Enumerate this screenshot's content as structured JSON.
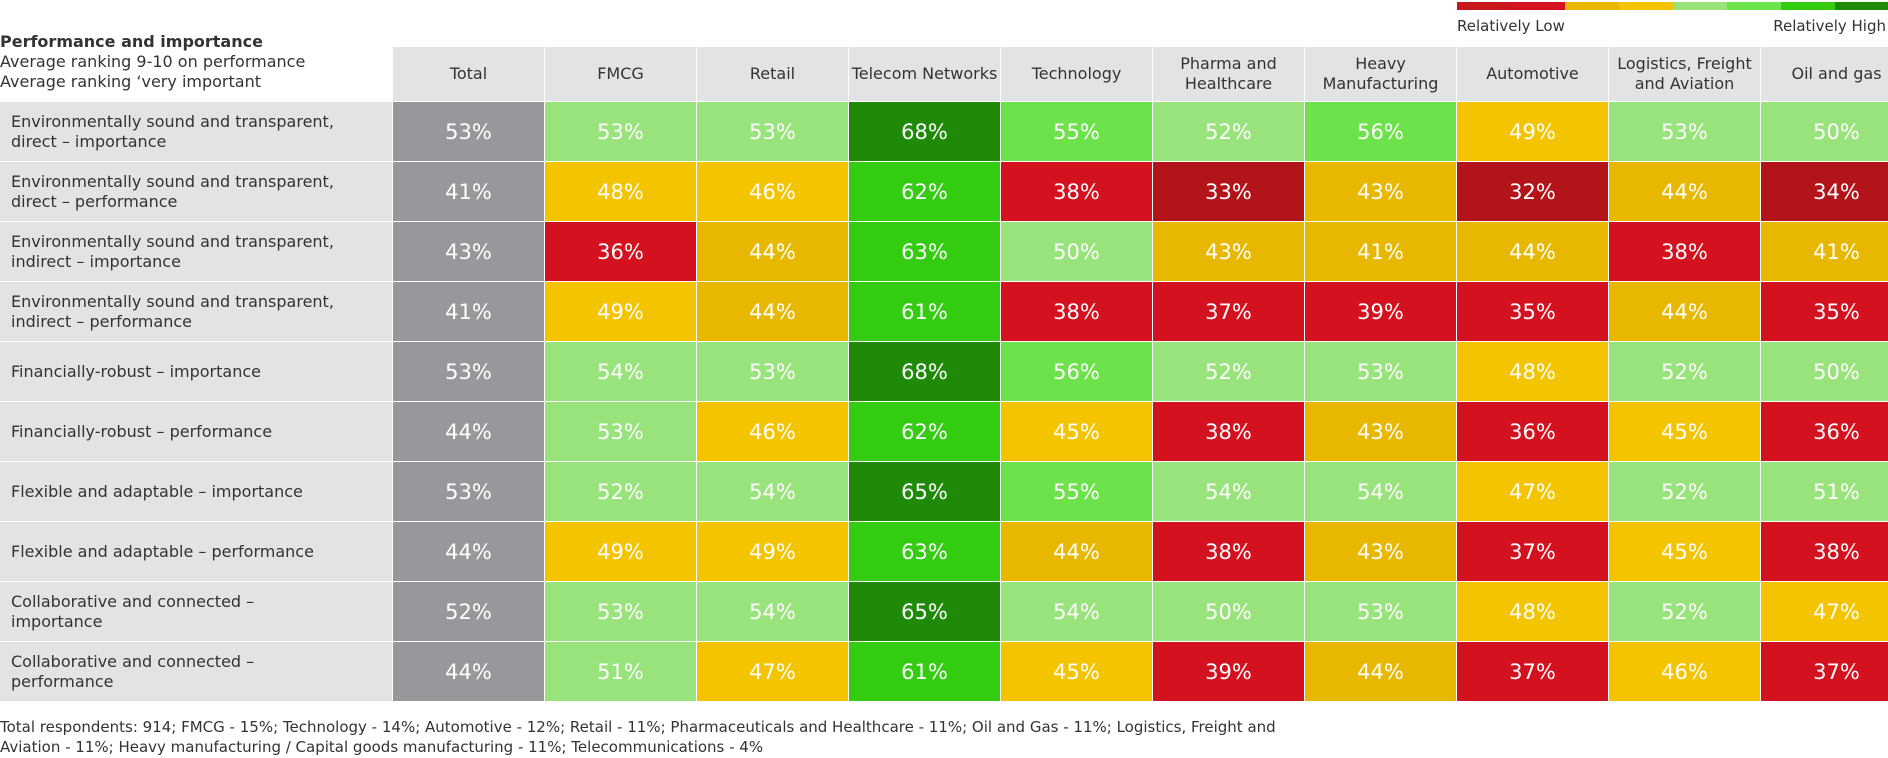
{
  "legend": {
    "low_label": "Relatively Low",
    "high_label": "Relatively High",
    "colors": [
      "#c8161d",
      "#d4111e",
      "#e8b800",
      "#f5c400",
      "#98e37b",
      "#6de24a",
      "#33cc10",
      "#1f8a08"
    ]
  },
  "title": {
    "line1": "Performance and importance",
    "line2": "Average ranking 9-10 on performance",
    "line3": "Average ranking ‘very important"
  },
  "chart_data": {
    "type": "heatmap",
    "columns": [
      "Total",
      "FMCG",
      "Retail",
      "Telecom Networks",
      "Technology",
      "Pharma and Healthcare",
      "Heavy Manufacturing",
      "Automotive",
      "Logistics, Freight and Aviation",
      "Oil and gas"
    ],
    "rows": [
      {
        "label": "Environmentally sound and transparent, direct – importance",
        "values": [
          53,
          53,
          53,
          68,
          55,
          52,
          56,
          49,
          53,
          50
        ]
      },
      {
        "label": "Environmentally sound and transparent, direct – performance",
        "values": [
          41,
          48,
          46,
          62,
          38,
          33,
          43,
          32,
          44,
          34
        ]
      },
      {
        "label": "Environmentally sound and transparent, indirect – importance",
        "values": [
          43,
          36,
          44,
          63,
          50,
          43,
          41,
          44,
          38,
          41
        ]
      },
      {
        "label": "Environmentally sound and transparent, indirect – performance",
        "values": [
          41,
          49,
          44,
          61,
          38,
          37,
          39,
          35,
          44,
          35
        ]
      },
      {
        "label": "Financially-robust – importance",
        "values": [
          53,
          54,
          53,
          68,
          56,
          52,
          53,
          48,
          52,
          50
        ]
      },
      {
        "label": "Financially-robust – performance",
        "values": [
          44,
          53,
          46,
          62,
          45,
          38,
          43,
          36,
          45,
          36
        ]
      },
      {
        "label": "Flexible and adaptable – importance",
        "values": [
          53,
          52,
          54,
          65,
          55,
          54,
          54,
          47,
          52,
          51
        ]
      },
      {
        "label": "Flexible and adaptable – performance",
        "values": [
          44,
          49,
          49,
          63,
          44,
          38,
          43,
          37,
          45,
          38
        ]
      },
      {
        "label": "Collaborative and connected – importance",
        "values": [
          52,
          53,
          54,
          65,
          54,
          50,
          53,
          48,
          52,
          47
        ]
      },
      {
        "label": "Collaborative and connected – performance",
        "values": [
          44,
          51,
          47,
          61,
          45,
          39,
          44,
          37,
          46,
          37
        ]
      }
    ],
    "colors": [
      [
        "#97989b",
        "#98e37b",
        "#98e37b",
        "#1f8a08",
        "#6de24a",
        "#98e37b",
        "#6de24a",
        "#f5c400",
        "#98e37b",
        "#98e37b"
      ],
      [
        "#97989b",
        "#f5c400",
        "#f5c400",
        "#33cc10",
        "#d4111e",
        "#b3141a",
        "#e8b800",
        "#b3141a",
        "#e8b800",
        "#b3141a"
      ],
      [
        "#97989b",
        "#d4111e",
        "#e8b800",
        "#33cc10",
        "#98e37b",
        "#e8b800",
        "#e8b800",
        "#e8b800",
        "#d4111e",
        "#e8b800"
      ],
      [
        "#97989b",
        "#f5c400",
        "#e8b800",
        "#33cc10",
        "#d4111e",
        "#d4111e",
        "#d4111e",
        "#d4111e",
        "#e8b800",
        "#d4111e"
      ],
      [
        "#97989b",
        "#98e37b",
        "#98e37b",
        "#1f8a08",
        "#6de24a",
        "#98e37b",
        "#98e37b",
        "#f5c400",
        "#98e37b",
        "#98e37b"
      ],
      [
        "#97989b",
        "#98e37b",
        "#f5c400",
        "#33cc10",
        "#f5c400",
        "#d4111e",
        "#e8b800",
        "#d4111e",
        "#f5c400",
        "#d4111e"
      ],
      [
        "#97989b",
        "#98e37b",
        "#98e37b",
        "#1f8a08",
        "#6de24a",
        "#98e37b",
        "#98e37b",
        "#f5c400",
        "#98e37b",
        "#98e37b"
      ],
      [
        "#97989b",
        "#f5c400",
        "#f5c400",
        "#33cc10",
        "#e8b800",
        "#d4111e",
        "#e8b800",
        "#d4111e",
        "#f5c400",
        "#d4111e"
      ],
      [
        "#97989b",
        "#98e37b",
        "#98e37b",
        "#1f8a08",
        "#98e37b",
        "#98e37b",
        "#98e37b",
        "#f5c400",
        "#98e37b",
        "#f5c400"
      ],
      [
        "#97989b",
        "#98e37b",
        "#f5c400",
        "#33cc10",
        "#f5c400",
        "#d4111e",
        "#e8b800",
        "#d4111e",
        "#f5c400",
        "#d4111e"
      ]
    ]
  },
  "footnote": "Total respondents: 914; FMCG - 15%; Technology - 14%; Automotive - 12%; Retail - 11%; Pharmaceuticals and Healthcare - 11%; Oil and Gas - 11%; Logistics, Freight and Aviation - 11%; Heavy manufacturing / Capital goods manufacturing - 11%; Telecommunications - 4%"
}
